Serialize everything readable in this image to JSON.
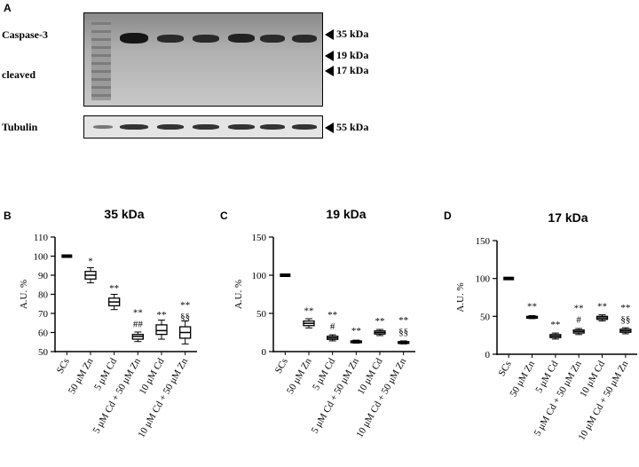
{
  "panel_labels": {
    "a": "A",
    "b": "B",
    "c": "C",
    "d": "D"
  },
  "blot": {
    "caspase_label": "Caspase-3",
    "cleaved_label": "cleaved",
    "tubulin_label": "Tubulin",
    "markers": [
      "35 kDa",
      "19 kDa",
      "17 kDa",
      "55 kDa"
    ]
  },
  "chart_data": [
    {
      "type": "box",
      "title": "35 kDa",
      "ylabel": "A.U. %",
      "ylim": [
        50,
        110
      ],
      "yticks": [
        50,
        60,
        70,
        80,
        90,
        100,
        110
      ],
      "categories": [
        "SCs",
        "50 μM Zn",
        "5 μM Cd",
        "5 μM Cd + 50 μM Zn",
        "10 μM Cd",
        "10 μM Cd + 50 μM Zn"
      ],
      "values": [
        100,
        90,
        76,
        58,
        61,
        60
      ],
      "box_ranges": [
        [
          100,
          100
        ],
        [
          88,
          92
        ],
        [
          74,
          78
        ],
        [
          56.5,
          59
        ],
        [
          59,
          64
        ],
        [
          57,
          63
        ]
      ],
      "annotations": [
        [
          "",
          ""
        ],
        [
          "*",
          ""
        ],
        [
          "**",
          ""
        ],
        [
          "**",
          "##"
        ],
        [
          "**",
          ""
        ],
        [
          "**",
          "§§"
        ]
      ]
    },
    {
      "type": "box",
      "title": "19 kDa",
      "ylabel": "A.U. %",
      "ylim": [
        0,
        150
      ],
      "yticks": [
        0,
        50,
        100,
        150
      ],
      "categories": [
        "SCs",
        "50 μM Zn",
        "5 μM Cd",
        "5 μM Cd + 50 μM Zn",
        "10 μM Cd",
        "10 μM Cd + 50 μM Zn"
      ],
      "values": [
        100,
        37,
        18,
        13,
        25,
        12
      ],
      "box_ranges": [
        [
          100,
          100
        ],
        [
          34,
          40
        ],
        [
          16,
          20
        ],
        [
          12,
          14
        ],
        [
          23,
          27
        ],
        [
          11,
          13
        ]
      ],
      "annotations": [
        [
          "",
          ""
        ],
        [
          "**",
          ""
        ],
        [
          "**",
          "#"
        ],
        [
          "**",
          ""
        ],
        [
          "**",
          ""
        ],
        [
          "**",
          "§§"
        ]
      ]
    },
    {
      "type": "box",
      "title": "17 kDa",
      "ylabel": "A.U. %",
      "ylim": [
        0,
        150
      ],
      "yticks": [
        0,
        50,
        100,
        150
      ],
      "categories": [
        "SCs",
        "50 μM Zn",
        "5 μM Cd",
        "5 μM Cd + 50 μM Zn",
        "10 μM Cd",
        "10 μM Cd + 50 μM Zn"
      ],
      "values": [
        100,
        49,
        24,
        30,
        48,
        31
      ],
      "box_ranges": [
        [
          100,
          100
        ],
        [
          48,
          50
        ],
        [
          22,
          26
        ],
        [
          28,
          32
        ],
        [
          46,
          50
        ],
        [
          29,
          33
        ]
      ],
      "annotations": [
        [
          "",
          ""
        ],
        [
          "**",
          ""
        ],
        [
          "**",
          ""
        ],
        [
          "**",
          "#"
        ],
        [
          "**",
          ""
        ],
        [
          "**",
          "§§"
        ]
      ]
    }
  ]
}
